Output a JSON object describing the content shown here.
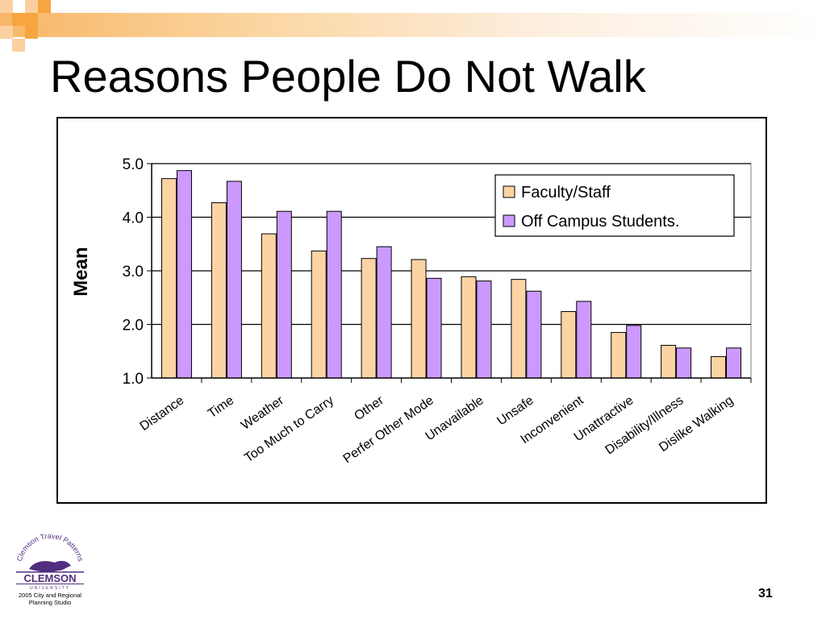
{
  "slide": {
    "title": "Reasons People Do Not Walk",
    "page_number": "31",
    "accent_color": "#f7a540",
    "logo": {
      "arc_text": "Clemson Travel Patterns",
      "name": "CLEMSON",
      "sub": "UNIVERSITY",
      "caption_line1": "2005 City and Regional",
      "caption_line2": "Planning Studio",
      "color": "#522d80"
    }
  },
  "chart_data": {
    "type": "bar",
    "title": "",
    "xlabel": "",
    "ylabel": "Mean",
    "ylim": [
      1.0,
      5.0
    ],
    "yticks": [
      "1.0",
      "2.0",
      "3.0",
      "4.0",
      "5.0"
    ],
    "grid": true,
    "legend_position": "top-right",
    "categories": [
      "Distance",
      "Time",
      "Weather",
      "Too Much to Carry",
      "Other",
      "Perfer Other Mode",
      "Unavailable",
      "Unsafe",
      "Inconvenient",
      "Unattractive",
      "Disability/Illness",
      "Dislike Walking"
    ],
    "series": [
      {
        "name": "Faculty/Staff",
        "color": "#fcd4a4",
        "values": [
          4.72,
          4.27,
          3.69,
          3.37,
          3.23,
          3.21,
          2.89,
          2.84,
          2.24,
          1.85,
          1.61,
          1.4
        ]
      },
      {
        "name": "Off Campus Students.",
        "color": "#cc99ff",
        "values": [
          4.87,
          4.67,
          4.11,
          4.11,
          3.45,
          2.86,
          2.81,
          2.62,
          2.43,
          1.98,
          1.56,
          1.56
        ]
      }
    ]
  }
}
